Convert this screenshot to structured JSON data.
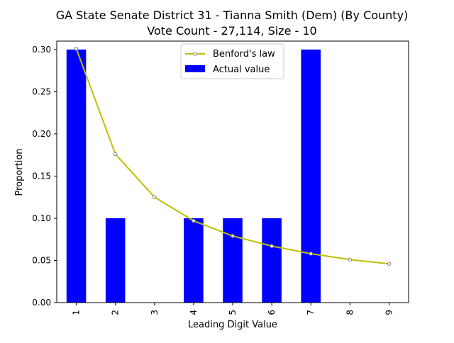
{
  "chart_data": {
    "type": "bar",
    "title_line1": "GA State Senate District 31 - Tianna Smith (Dem) (By County)",
    "title_line2": "Vote Count - 27,114, Size - 10",
    "xlabel": "Leading Digit Value",
    "ylabel": "Proportion",
    "categories": [
      "1",
      "2",
      "3",
      "4",
      "5",
      "6",
      "7",
      "8",
      "9"
    ],
    "ylim": [
      0,
      0.31
    ],
    "yticks": [
      "0.00",
      "0.05",
      "0.10",
      "0.15",
      "0.20",
      "0.25",
      "0.30"
    ],
    "ytick_values": [
      0,
      0.05,
      0.1,
      0.15,
      0.2,
      0.25,
      0.3
    ],
    "grid": false,
    "legend_position": "top-center",
    "series": [
      {
        "name": "Benford's law",
        "type": "line",
        "color": "#bfbf00",
        "values": [
          0.301,
          0.176,
          0.125,
          0.097,
          0.079,
          0.067,
          0.058,
          0.051,
          0.046
        ]
      },
      {
        "name": "Actual value",
        "type": "bar",
        "color": "#0000ff",
        "values": [
          0.3,
          0.1,
          0.0,
          0.1,
          0.1,
          0.1,
          0.3,
          0.0,
          0.0
        ]
      }
    ]
  }
}
